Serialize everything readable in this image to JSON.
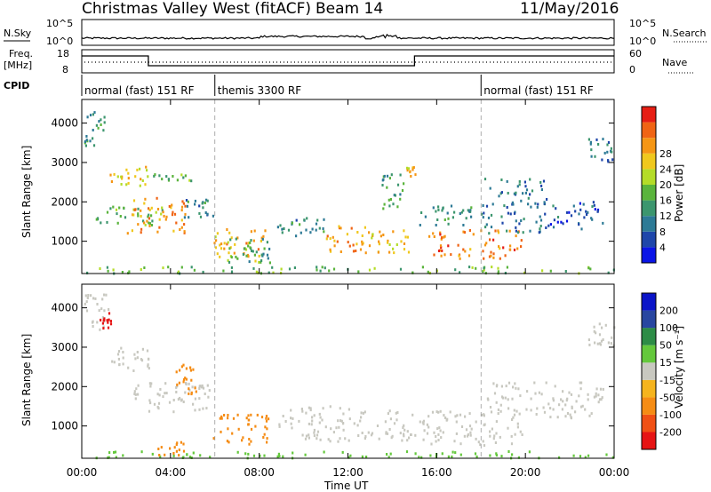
{
  "header": {
    "title": "Christmas Valley West (fitACF)",
    "beam": "Beam 14",
    "date": "11/May/2016"
  },
  "nsky_panel": {
    "left_label": "N.Sky",
    "right_label": "N.Search",
    "left_ticks": [
      "10^5",
      "10^0"
    ],
    "right_ticks": [
      "10^5",
      "10^0"
    ]
  },
  "freq_panel": {
    "left_label_1": "Freq.",
    "left_label_2": "[MHz]",
    "right_label": "Nave",
    "left_ticks": [
      "18",
      "8"
    ],
    "right_ticks": [
      "60",
      "0"
    ]
  },
  "cpid_panel": {
    "label": "CPID",
    "segments": [
      {
        "start": 0,
        "text": "normal (fast) 151 RF"
      },
      {
        "start": 6,
        "text": "themis 3300 RF"
      },
      {
        "start": 18,
        "text": "normal (fast) 151 RF"
      }
    ]
  },
  "time_axis": {
    "label": "Time UT",
    "ticks": [
      "00:00",
      "04:00",
      "08:00",
      "12:00",
      "16:00",
      "20:00",
      "00:00"
    ]
  },
  "colors": {
    "power": [
      "#0a14e6",
      "#1e46aa",
      "#2d7a96",
      "#3c966e",
      "#5ab43c",
      "#b4dc28",
      "#f0c81e",
      "#f59614",
      "#f06414",
      "#e61e14"
    ],
    "velocity": [
      "#e61414",
      "#f05014",
      "#f58c14",
      "#f5b41e",
      "#c8c8c0",
      "#64c83c",
      "#2d8c46",
      "#2846a0",
      "#0a14c8"
    ]
  },
  "chart_data": [
    {
      "type": "heatmap",
      "panel": "power",
      "ylabel": "Slant Range [km]",
      "xlabel": "",
      "x_range_hours": [
        0,
        24
      ],
      "ylim": [
        180,
        4600
      ],
      "y_ticks": [
        "1000",
        "2000",
        "3000",
        "4000"
      ],
      "colorbar": {
        "label": "Power [dB]",
        "range": [
          0,
          32
        ],
        "ticks": [
          "4",
          "8",
          "12",
          "16",
          "20",
          "24",
          "28"
        ]
      },
      "regions": [
        {
          "t0": 0.1,
          "t1": 1.0,
          "r0": 3400,
          "r1": 4350,
          "v": 10
        },
        {
          "t0": 1.2,
          "t1": 3.0,
          "r0": 2400,
          "r1": 2900,
          "v": 20
        },
        {
          "t0": 3.2,
          "t1": 5.0,
          "r0": 2500,
          "r1": 2700,
          "v": 14
        },
        {
          "t0": 0.6,
          "t1": 3.6,
          "r0": 1400,
          "r1": 1900,
          "v": 14
        },
        {
          "t0": 2.0,
          "t1": 4.8,
          "r0": 1200,
          "r1": 2100,
          "v": 24
        },
        {
          "t0": 4.6,
          "t1": 6.0,
          "r0": 1600,
          "r1": 2100,
          "v": 10
        },
        {
          "t0": 5.9,
          "t1": 8.3,
          "r0": 450,
          "r1": 1300,
          "v": 22
        },
        {
          "t0": 6.5,
          "t1": 8.5,
          "r0": 300,
          "r1": 1100,
          "v": 12
        },
        {
          "t0": 8.8,
          "t1": 11.0,
          "r0": 1100,
          "r1": 1600,
          "v": 10
        },
        {
          "t0": 11.0,
          "t1": 13.0,
          "r0": 700,
          "r1": 1400,
          "v": 24
        },
        {
          "t0": 13.0,
          "t1": 14.8,
          "r0": 700,
          "r1": 1300,
          "v": 22
        },
        {
          "t0": 13.4,
          "t1": 14.5,
          "r0": 1800,
          "r1": 2700,
          "v": 12
        },
        {
          "t0": 14.6,
          "t1": 15.0,
          "r0": 2650,
          "r1": 2900,
          "v": 22
        },
        {
          "t0": 15.2,
          "t1": 18.0,
          "r0": 1400,
          "r1": 1900,
          "v": 10
        },
        {
          "t0": 15.6,
          "t1": 19.8,
          "r0": 550,
          "r1": 1300,
          "v": 26
        },
        {
          "t0": 18.0,
          "t1": 21.0,
          "r0": 1200,
          "r1": 2600,
          "v": 8
        },
        {
          "t0": 21.0,
          "t1": 23.5,
          "r0": 1300,
          "r1": 2000,
          "v": 6
        },
        {
          "t0": 22.8,
          "t1": 24.0,
          "r0": 3000,
          "r1": 3600,
          "v": 8
        },
        {
          "t0": 0.0,
          "t1": 24.0,
          "r0": 180,
          "r1": 350,
          "v": 14
        }
      ]
    },
    {
      "type": "heatmap",
      "panel": "velocity",
      "ylabel": "Slant Range [km]",
      "xlabel": "Time UT",
      "x_range_hours": [
        0,
        24
      ],
      "ylim": [
        180,
        4600
      ],
      "y_ticks": [
        "1000",
        "2000",
        "3000",
        "4000"
      ],
      "colorbar": {
        "label": "Velocity [m s⁻¹]",
        "ticks": [
          "200",
          "100",
          "50",
          "15",
          "-15",
          "-50",
          "-100",
          "-200"
        ]
      },
      "regions": [
        {
          "t0": 0.1,
          "t1": 1.2,
          "r0": 3400,
          "r1": 4350,
          "v": 0
        },
        {
          "t0": 1.2,
          "t1": 3.0,
          "r0": 2400,
          "r1": 3000,
          "v": 0
        },
        {
          "t0": 2.0,
          "t1": 5.8,
          "r0": 1300,
          "r1": 2100,
          "v": 0
        },
        {
          "t0": 4.2,
          "t1": 5.2,
          "r0": 1800,
          "r1": 2600,
          "v": -40
        },
        {
          "t0": 5.9,
          "t1": 8.4,
          "r0": 500,
          "r1": 1300,
          "v": -40
        },
        {
          "t0": 8.8,
          "t1": 12.5,
          "r0": 600,
          "r1": 1500,
          "v": 0
        },
        {
          "t0": 12.5,
          "t1": 15.0,
          "r0": 600,
          "r1": 1400,
          "v": 0
        },
        {
          "t0": 15.2,
          "t1": 20.0,
          "r0": 500,
          "r1": 1400,
          "v": 0
        },
        {
          "t0": 18.0,
          "t1": 23.5,
          "r0": 1200,
          "r1": 2100,
          "v": 0
        },
        {
          "t0": 22.8,
          "t1": 24.0,
          "r0": 3000,
          "r1": 3600,
          "v": 0
        },
        {
          "t0": 0.0,
          "t1": 24.0,
          "r0": 180,
          "r1": 350,
          "v": 25
        },
        {
          "t0": 3.4,
          "t1": 4.6,
          "r0": 250,
          "r1": 600,
          "v": -40
        },
        {
          "t0": 0.8,
          "t1": 1.3,
          "r0": 3300,
          "r1": 3900,
          "v": -250
        }
      ]
    }
  ]
}
